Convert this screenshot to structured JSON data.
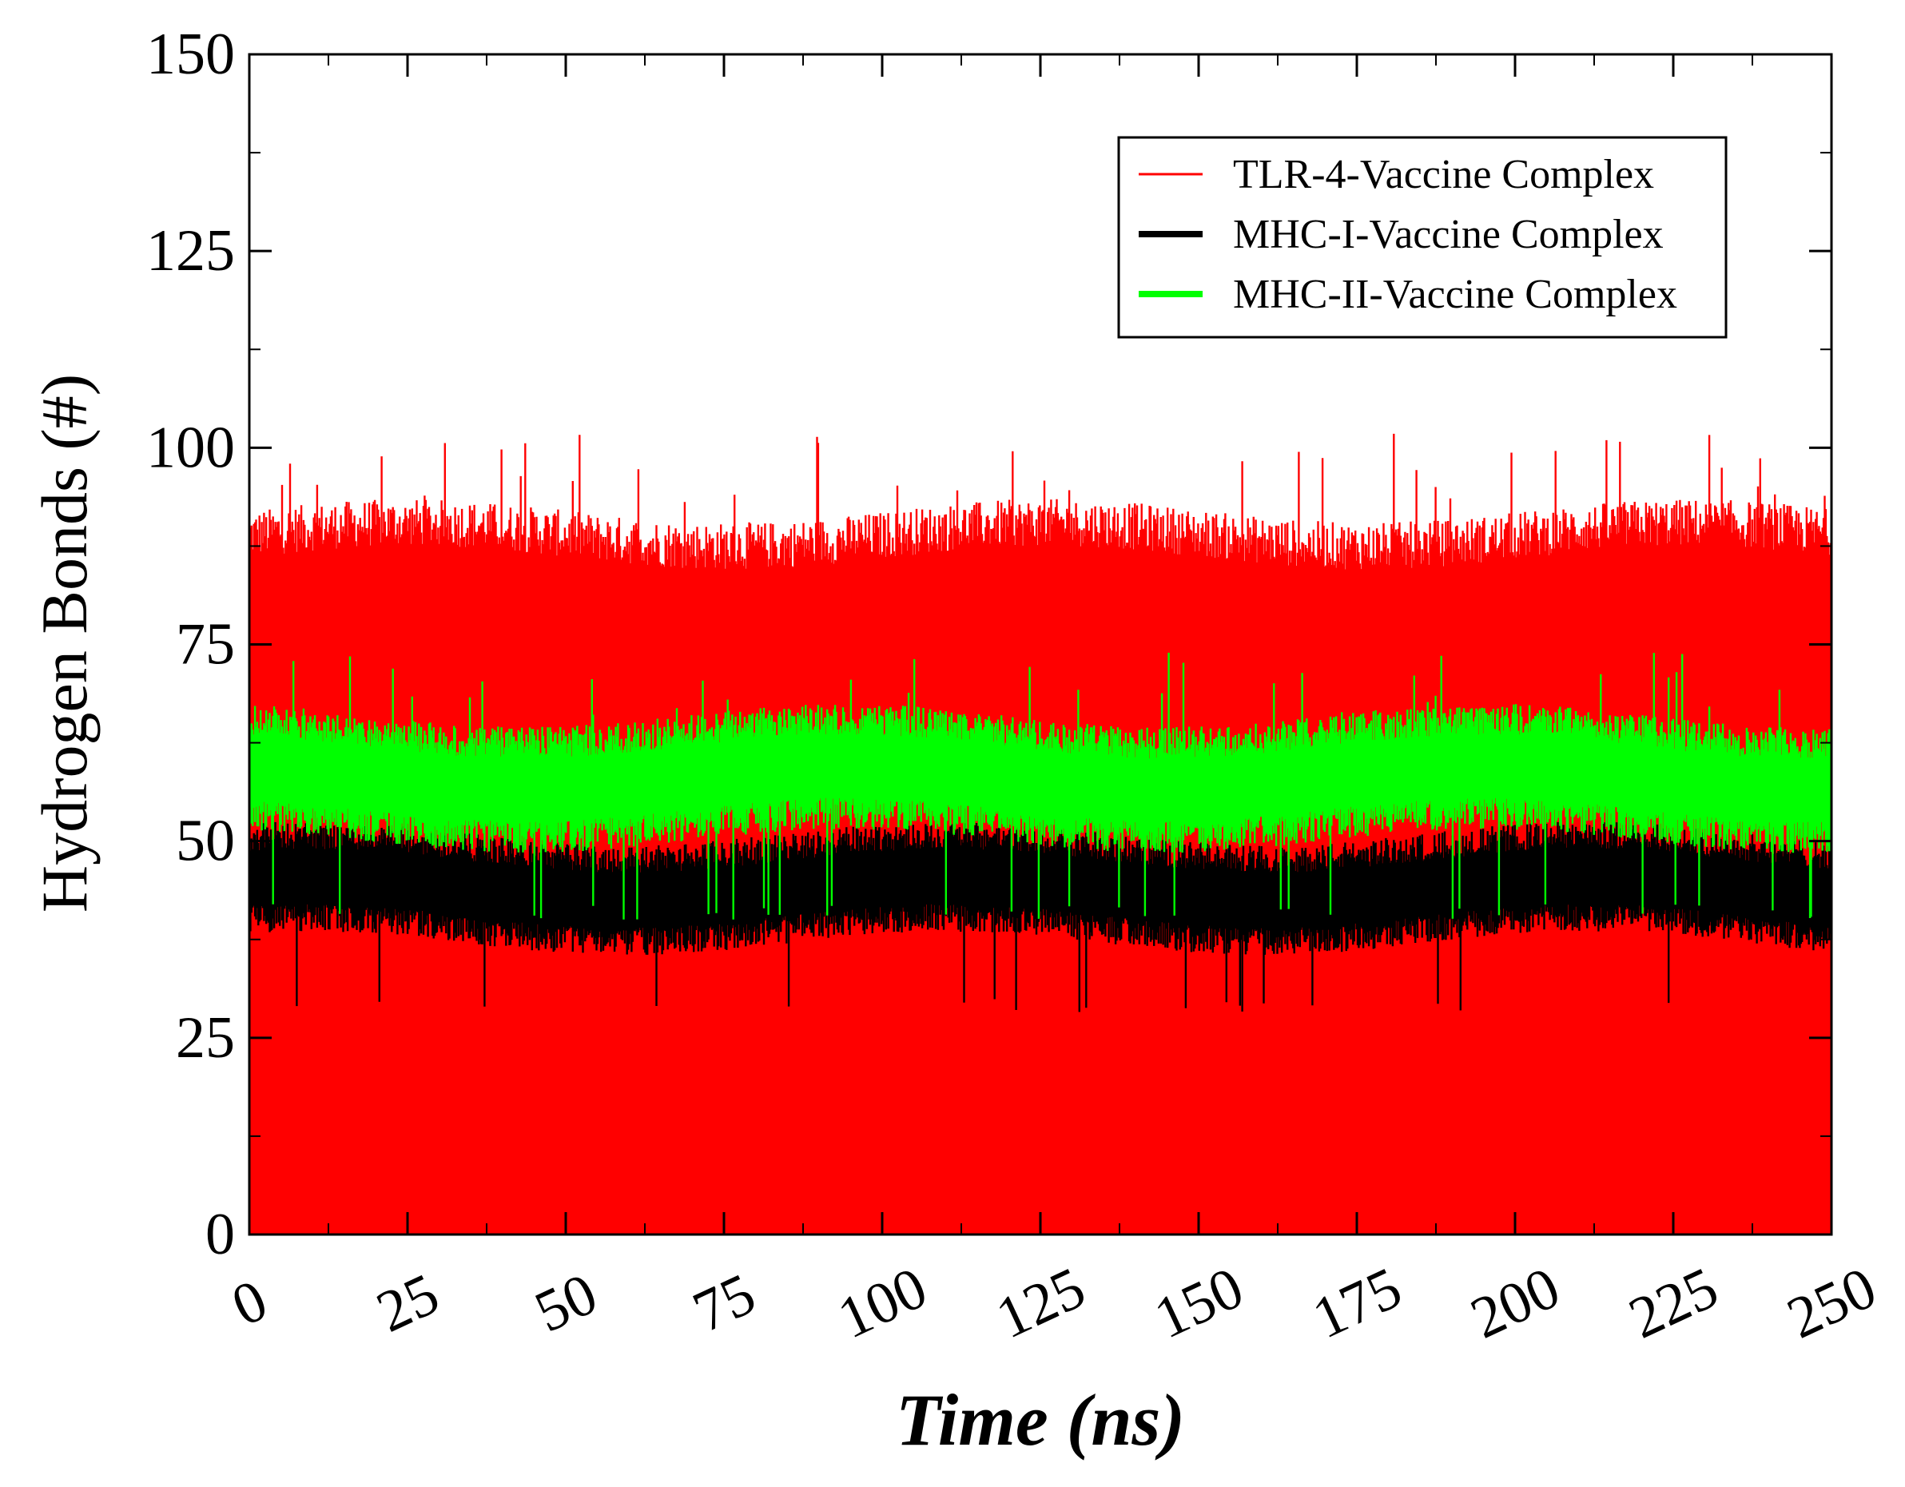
{
  "chart_data": {
    "type": "line",
    "title": "",
    "xlabel": "Time (ns)",
    "ylabel": "Hydrogen Bonds (#)",
    "xlim": [
      0,
      250
    ],
    "ylim": [
      0,
      150
    ],
    "x_ticks": [
      0,
      25,
      50,
      75,
      100,
      125,
      150,
      175,
      200,
      225,
      250
    ],
    "y_ticks": [
      0,
      25,
      50,
      75,
      100,
      125,
      150
    ],
    "grid": false,
    "legend_position": "top-right",
    "series": [
      {
        "name": "TLR-4-Vaccine Complex",
        "color": "#ff0000",
        "band_low": 0,
        "mean": 65,
        "band_high": 92,
        "peak_max": 102
      },
      {
        "name": "MHC-I-Vaccine Complex",
        "color": "#000000",
        "band_low": 37,
        "mean": 44,
        "band_high": 51,
        "peak_min": 31
      },
      {
        "name": "MHC-II-Vaccine Complex",
        "color": "#00ff00",
        "band_low": 50,
        "mean": 58,
        "band_high": 66,
        "peak_max": 74
      }
    ]
  }
}
